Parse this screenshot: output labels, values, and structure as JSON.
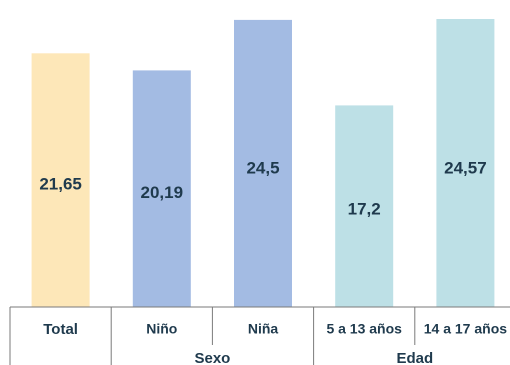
{
  "chart_data": {
    "type": "bar",
    "title": "",
    "xlabel": "",
    "ylabel": "",
    "ylim": [
      0,
      25
    ],
    "grid": false,
    "legend": "none",
    "categories": [
      "Total",
      "Niño",
      "Niña",
      "5 a 13 años",
      "14 a 17 años"
    ],
    "values": [
      21.65,
      20.19,
      24.5,
      17.2,
      24.57
    ],
    "value_labels": [
      "21,65",
      "20,19",
      "24,5",
      "17,2",
      "24,57"
    ],
    "bar_colors": [
      "#fde7b8",
      "#a3bbe3",
      "#a3bbe3",
      "#bde0e6",
      "#bde0e6"
    ],
    "groups": [
      {
        "label": "Sexo",
        "categories": [
          "Niño",
          "Niña"
        ]
      },
      {
        "label": "Edad",
        "categories": [
          "5 a 13 años",
          "14 a 17 años"
        ]
      }
    ]
  }
}
